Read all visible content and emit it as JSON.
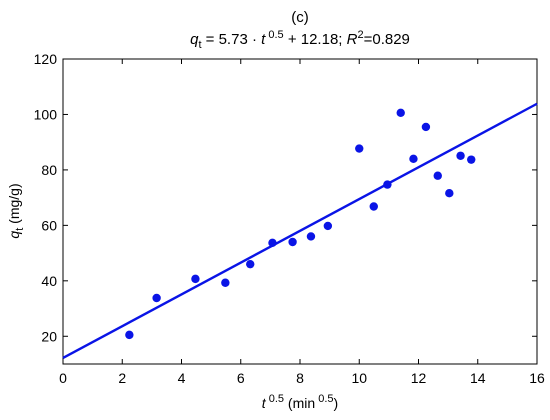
{
  "chart_data": {
    "type": "scatter",
    "panel_label": "(c)",
    "title": {
      "q": "q",
      "q_sub": "t",
      "eq_mid": " = 5.73 · ",
      "t": "t",
      "t_sup": " 0.5",
      "eq_end": " + 12.18; ",
      "r": "R",
      "r_sup": "2",
      "r_val": "=0.829"
    },
    "xlabel": {
      "var": "t",
      "sup1": " 0.5",
      "unit": " (min",
      "sup2": " 0.5",
      "close": ")"
    },
    "ylabel": {
      "var": "q",
      "sub": "t",
      "unit": " (mg/g)"
    },
    "xlim": [
      0,
      16
    ],
    "ylim": [
      10,
      120
    ],
    "xticks": [
      0,
      2,
      4,
      6,
      8,
      10,
      12,
      14,
      16
    ],
    "yticks": [
      20,
      40,
      60,
      80,
      100,
      120
    ],
    "grid": false,
    "colors": {
      "points": "#0a14e6",
      "line": "#0a14e6"
    },
    "fit": {
      "slope": 5.73,
      "intercept": 12.18
    },
    "points": [
      {
        "x": 2.24,
        "y": 20.5
      },
      {
        "x": 3.16,
        "y": 33.8
      },
      {
        "x": 4.47,
        "y": 40.7
      },
      {
        "x": 5.48,
        "y": 39.3
      },
      {
        "x": 6.32,
        "y": 46.0
      },
      {
        "x": 7.07,
        "y": 53.7
      },
      {
        "x": 7.75,
        "y": 54.0
      },
      {
        "x": 8.37,
        "y": 56.0
      },
      {
        "x": 8.94,
        "y": 59.8
      },
      {
        "x": 10.0,
        "y": 87.7
      },
      {
        "x": 10.49,
        "y": 66.8
      },
      {
        "x": 10.95,
        "y": 74.7
      },
      {
        "x": 11.4,
        "y": 100.6
      },
      {
        "x": 11.83,
        "y": 84.0
      },
      {
        "x": 12.25,
        "y": 95.5
      },
      {
        "x": 12.65,
        "y": 77.9
      },
      {
        "x": 13.04,
        "y": 71.6
      },
      {
        "x": 13.42,
        "y": 85.1
      },
      {
        "x": 13.78,
        "y": 83.7
      }
    ]
  }
}
